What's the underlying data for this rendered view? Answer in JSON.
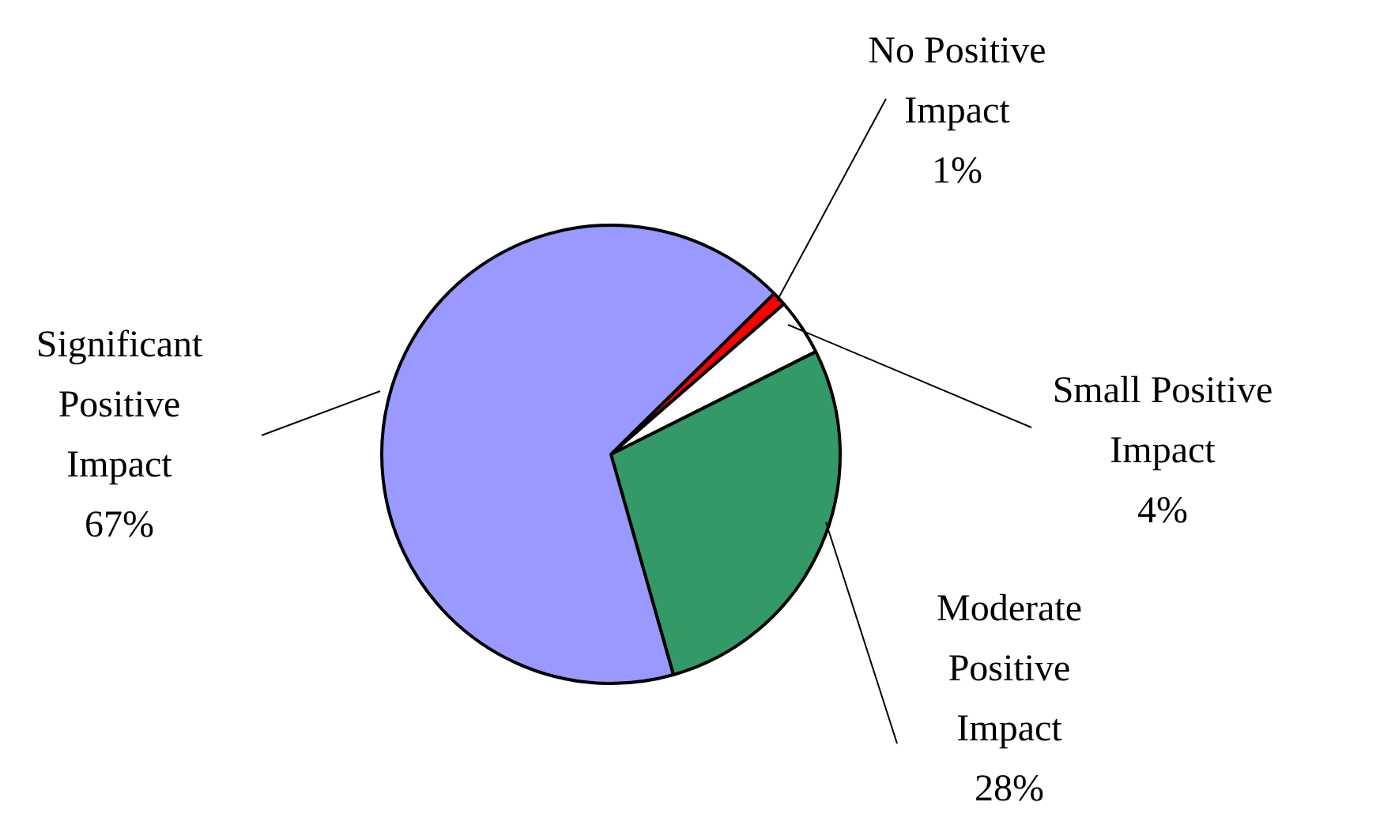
{
  "chart_data": {
    "type": "pie",
    "categories": [
      "No Positive Impact",
      "Small Positive Impact",
      "Moderate Positive Impact",
      "Significant Positive Impact"
    ],
    "values": [
      1,
      4,
      28,
      67
    ],
    "colors": [
      "#ff0000",
      "#ffffff",
      "#339966",
      "#9999ff"
    ],
    "value_labels": [
      "1%",
      "4%",
      "28%",
      "67%"
    ]
  }
}
